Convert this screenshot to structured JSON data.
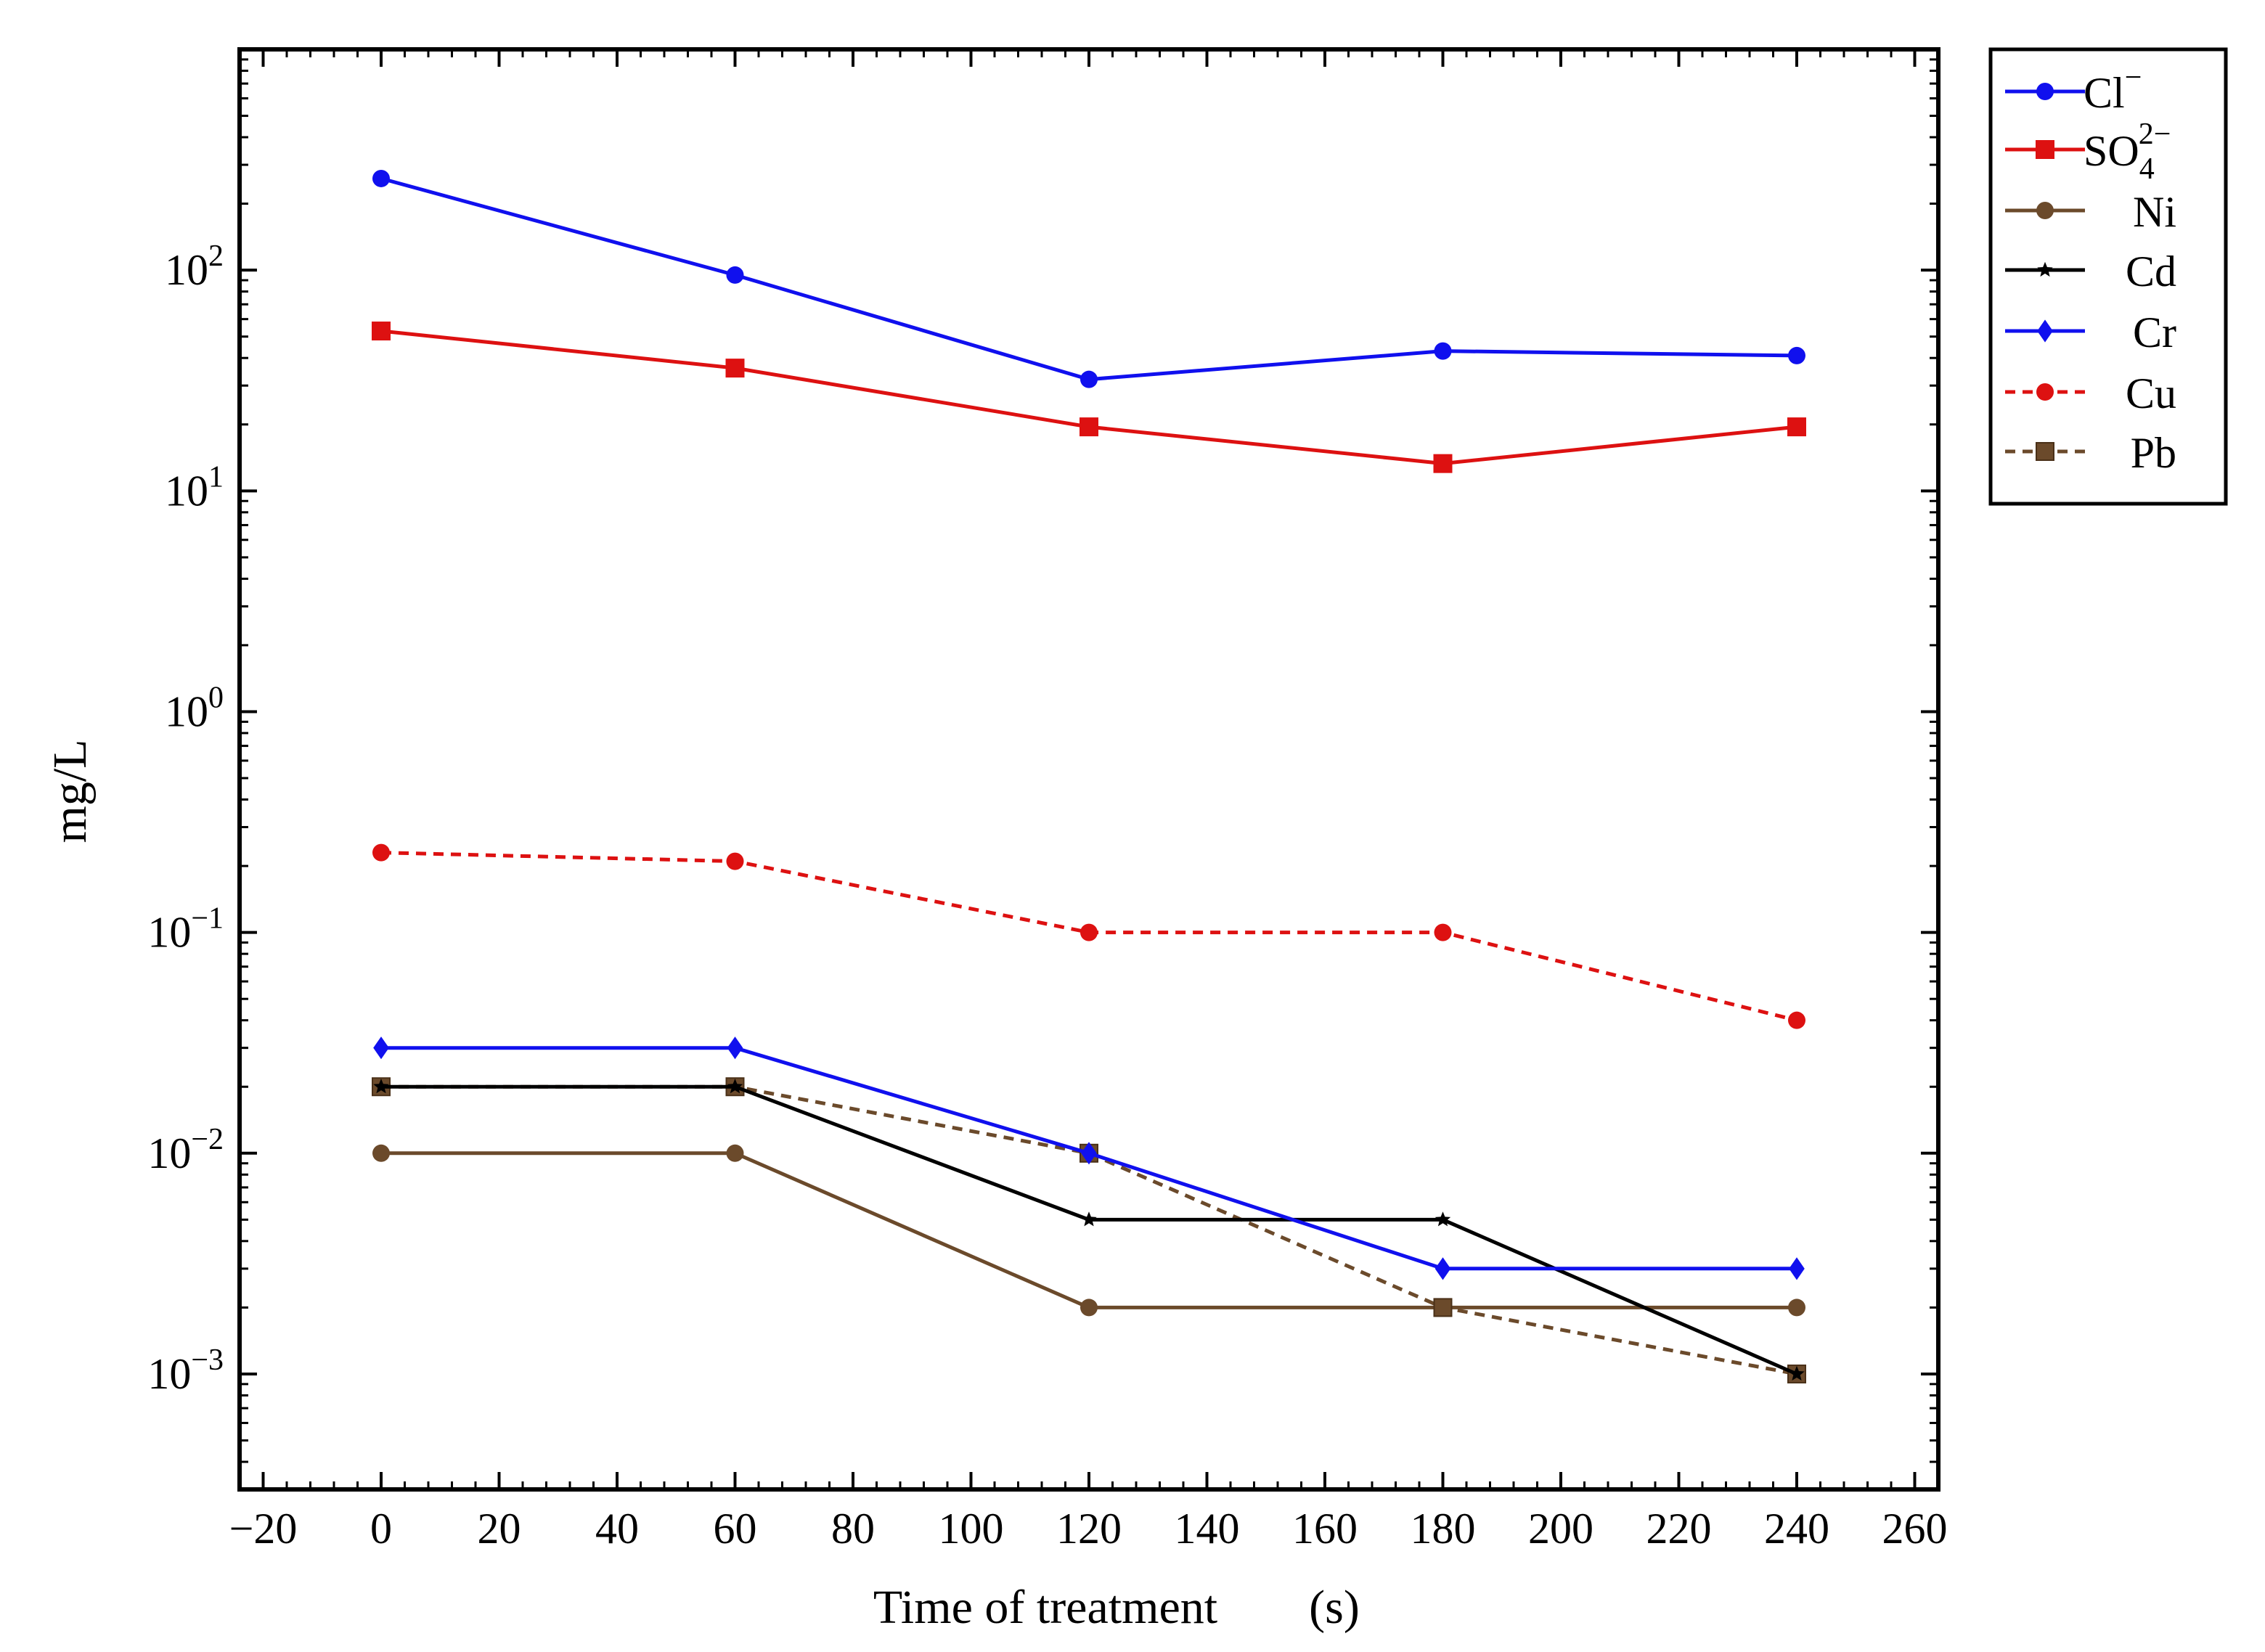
{
  "chart_data": {
    "type": "line",
    "title": "",
    "xlabel": "Time of treatment",
    "xlabel_unit": "(s)",
    "ylabel": "mg/L",
    "yscale": "log",
    "xlim": [
      -24,
      264
    ],
    "ylim": [
      0.0003,
      1000
    ],
    "x_ticks": [
      -20,
      0,
      20,
      40,
      60,
      80,
      100,
      120,
      140,
      160,
      180,
      200,
      220,
      240,
      260
    ],
    "x_tick_labels": [
      "−20",
      "0",
      "20",
      "40",
      "60",
      "80",
      "100",
      "120",
      "140",
      "160",
      "180",
      "200",
      "220",
      "240",
      "260"
    ],
    "y_ticks": [
      {
        "value": 100,
        "base": "10",
        "exp": "2"
      },
      {
        "value": 10,
        "base": "10",
        "exp": "1"
      },
      {
        "value": 1,
        "base": "10",
        "exp": "0"
      },
      {
        "value": 0.1,
        "base": "10",
        "exp": "−1"
      },
      {
        "value": 0.01,
        "base": "10",
        "exp": "−2"
      },
      {
        "value": 0.001,
        "base": "10",
        "exp": "−3"
      }
    ],
    "legend_position": "outside-right-top",
    "x": [
      0,
      60,
      120,
      180,
      240
    ],
    "series": [
      {
        "key": "cl",
        "name": "Cl",
        "sup": "−",
        "sub": "",
        "color": "#1010ee",
        "marker": "circle",
        "dash": false,
        "values": [
          260,
          95,
          32,
          43,
          41
        ]
      },
      {
        "key": "so4",
        "name": "SO",
        "sup": "2−",
        "sub": "4",
        "color": "#dd1111",
        "marker": "square",
        "dash": false,
        "values": [
          53,
          36,
          19.5,
          13.3,
          19.5
        ]
      },
      {
        "key": "ni",
        "name": "Ni",
        "sup": "",
        "sub": "",
        "color": "#6b4a2b",
        "marker": "circle",
        "dash": false,
        "values": [
          0.01,
          0.01,
          0.002,
          0.002,
          0.002
        ]
      },
      {
        "key": "cd",
        "name": "Cd",
        "sup": "",
        "sub": "",
        "color": "#000000",
        "marker": "star",
        "dash": false,
        "values": [
          0.02,
          0.02,
          0.005,
          0.005,
          0.001
        ]
      },
      {
        "key": "cr",
        "name": "Cr",
        "sup": "",
        "sub": "",
        "color": "#1010ee",
        "marker": "diamond",
        "dash": false,
        "values": [
          0.03,
          0.03,
          0.01,
          0.003,
          0.003
        ]
      },
      {
        "key": "cu",
        "name": "Cu",
        "sup": "",
        "sub": "",
        "color": "#dd1111",
        "marker": "circle",
        "dash": true,
        "values": [
          0.23,
          0.21,
          0.1,
          0.1,
          0.04
        ]
      },
      {
        "key": "pb",
        "name": "Pb",
        "sup": "",
        "sub": "",
        "color": "#6b4a2b",
        "marker": "square",
        "dash": true,
        "values": [
          0.02,
          0.02,
          0.01,
          0.002,
          0.001
        ]
      }
    ]
  }
}
